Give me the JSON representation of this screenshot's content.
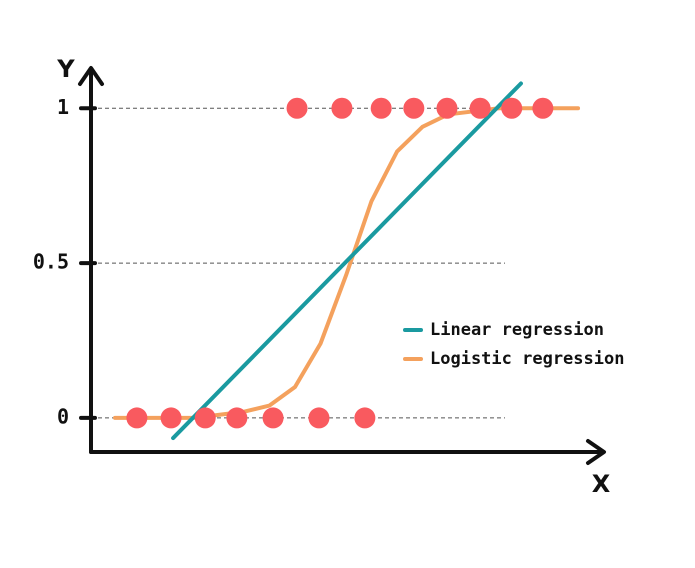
{
  "chart_data": {
    "type": "line",
    "x_label": "X",
    "y_label": "Y",
    "xlim": [
      0,
      10
    ],
    "ylim": [
      -0.11,
      1.13
    ],
    "yticks": [
      0,
      0.5,
      1
    ],
    "grid": true,
    "legend": "right",
    "points": {
      "color": "#f95a5f",
      "x": [
        0.9,
        1.57,
        2.24,
        2.86,
        3.57,
        4.47,
        5.37,
        4.04,
        4.92,
        5.69,
        6.33,
        6.98,
        7.63,
        8.25,
        8.86
      ],
      "values": [
        0,
        0,
        0,
        0,
        0,
        0,
        0,
        1,
        1,
        1,
        1,
        1,
        1,
        1,
        1
      ]
    },
    "series": [
      {
        "name": "Linear regression",
        "color": "#1a9aa0",
        "width": 4,
        "x": [
          1.61,
          8.43
        ],
        "values": [
          -0.065,
          1.08
        ]
      },
      {
        "name": "Logistic regression",
        "color": "#f4a15d",
        "width": 4,
        "x": [
          0.47,
          1,
          1.5,
          2,
          2.5,
          3,
          3.5,
          4,
          4.5,
          5,
          5.5,
          6,
          6.5,
          7,
          8,
          9,
          9.55
        ],
        "values": [
          0,
          0,
          0,
          0,
          0.01,
          0.02,
          0.04,
          0.1,
          0.24,
          0.46,
          0.7,
          0.86,
          0.94,
          0.98,
          1,
          1,
          1
        ]
      }
    ]
  }
}
